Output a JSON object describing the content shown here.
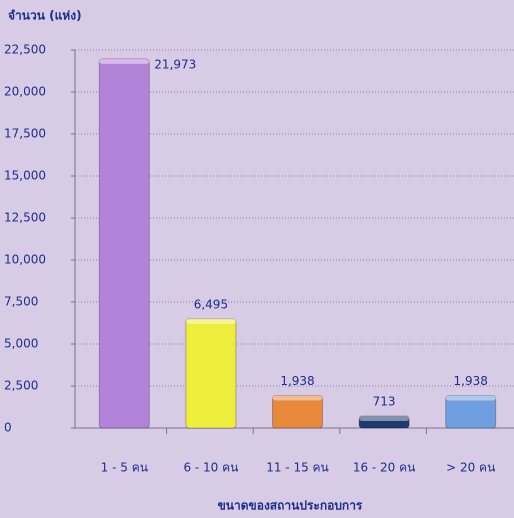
{
  "chart_data": {
    "type": "bar",
    "y_label": "จำนวน (แห่ง)",
    "x_label": "ขนาดของสถานประกอบการ",
    "categories": [
      "1 - 5 คน",
      "6 - 10 คน",
      "11 - 15 คน",
      "16 - 20 คน",
      "> 20 คน"
    ],
    "values": [
      21973,
      6495,
      1938,
      713,
      1938
    ],
    "value_labels": [
      "21,973",
      "6,495",
      "1,938",
      "713",
      "1,938"
    ],
    "colors": [
      "#b283d8",
      "#eeee3c",
      "#e8883a",
      "#1f3a6e",
      "#6f9fe0"
    ],
    "ylim": [
      0,
      22500
    ],
    "yticks": [
      0,
      {
        "value": 2500,
        "label": "2,500"
      },
      {
        "value": 5000,
        "label": "5,000"
      },
      {
        "value": 7500,
        "label": "7,500"
      },
      {
        "value": 10000,
        "label": "10,000"
      },
      {
        "value": 12500,
        "label": "12,500"
      },
      {
        "value": 15000,
        "label": "15,000"
      },
      {
        "value": 17500,
        "label": "17,500"
      },
      {
        "value": 20000,
        "label": "20,000"
      },
      {
        "value": 22500,
        "label": "22,500"
      }
    ],
    "grid": true
  }
}
